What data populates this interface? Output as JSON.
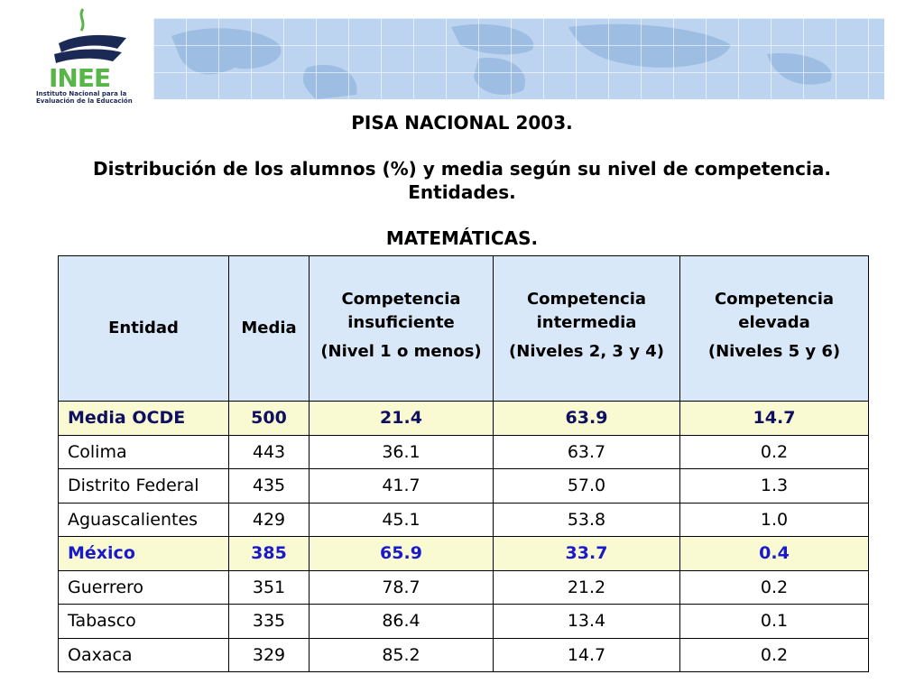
{
  "logo": {
    "brand": "INEE",
    "caption": "Instituto Nacional para la Evaluación de la Educación"
  },
  "titles": {
    "line1": "PISA NACIONAL 2003.",
    "line2": "Distribución de los alumnos (%) y media según su nivel de competencia. Entidades.",
    "line3": "MATEMÁTICAS."
  },
  "table": {
    "headers": {
      "entidad": "Entidad",
      "media": "Media",
      "insuf_a": "Competencia insuficiente",
      "insuf_b": "(Nivel 1 o menos)",
      "inter_a": "Competencia intermedia",
      "inter_b": "(Niveles 2, 3 y 4)",
      "elev_a": "Competencia elevada",
      "elev_b": "(Niveles 5 y 6)"
    },
    "rows": [
      {
        "entidad": "Media OCDE",
        "media": "500",
        "insuf": "21.4",
        "inter": "63.9",
        "elev": "14.7"
      },
      {
        "entidad": "Colima",
        "media": "443",
        "insuf": "36.1",
        "inter": "63.7",
        "elev": "0.2"
      },
      {
        "entidad": "Distrito Federal",
        "media": "435",
        "insuf": "41.7",
        "inter": "57.0",
        "elev": "1.3"
      },
      {
        "entidad": "Aguascalientes",
        "media": "429",
        "insuf": "45.1",
        "inter": "53.8",
        "elev": "1.0"
      },
      {
        "entidad": "México",
        "media": "385",
        "insuf": "65.9",
        "inter": "33.7",
        "elev": "0.4"
      },
      {
        "entidad": "Guerrero",
        "media": "351",
        "insuf": "78.7",
        "inter": "21.2",
        "elev": "0.2"
      },
      {
        "entidad": "Tabasco",
        "media": "335",
        "insuf": "86.4",
        "inter": "13.4",
        "elev": "0.1"
      },
      {
        "entidad": "Oaxaca",
        "media": "329",
        "insuf": "85.2",
        "inter": "14.7",
        "elev": "0.2"
      }
    ]
  },
  "colors": {
    "banner": "#bcd4ef",
    "header_bg": "#d9e8f8",
    "highlight_bg": "#fafad2",
    "mexico_text": "#1a1acb",
    "logo_green": "#58b547"
  }
}
